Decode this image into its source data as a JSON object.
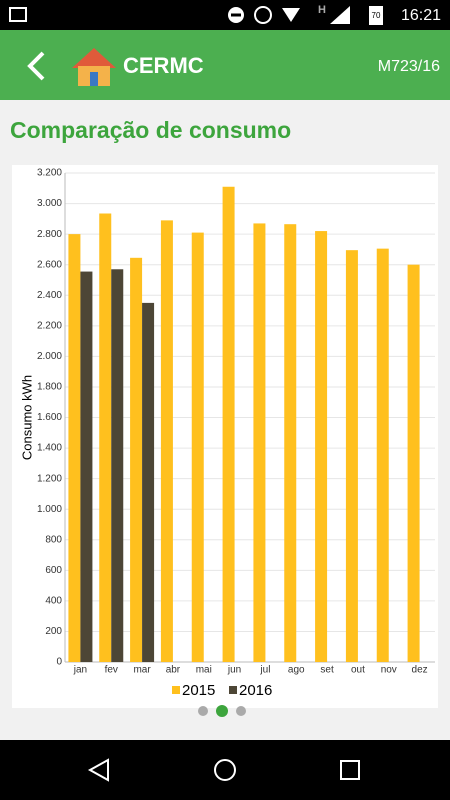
{
  "status_bar": {
    "network": "H",
    "battery": "70",
    "time": "16:21"
  },
  "app_bar": {
    "title": "CERMC",
    "subtitle": "M723/16"
  },
  "page_title": "Comparação de consumo",
  "chart_data": {
    "type": "bar",
    "y_label": "Consumo kWh",
    "categories": [
      "jan",
      "fev",
      "mar",
      "abr",
      "mai",
      "jun",
      "jul",
      "ago",
      "set",
      "out",
      "nov",
      "dez"
    ],
    "series": [
      {
        "name": "2015",
        "color": "#ffc01e",
        "values": [
          2800,
          2935,
          2645,
          2890,
          2810,
          3110,
          2870,
          2865,
          2820,
          2695,
          2705,
          2600
        ]
      },
      {
        "name": "2016",
        "color": "#4d4636",
        "values": [
          2555,
          2570,
          2350,
          null,
          null,
          null,
          null,
          null,
          null,
          null,
          null,
          null
        ]
      }
    ],
    "ylim": [
      0,
      3200
    ],
    "yticks": [
      0,
      200,
      400,
      600,
      800,
      {
        "value": 1000,
        "label": "1.000"
      },
      {
        "value": 1200,
        "label": "1.200"
      },
      {
        "value": 1400,
        "label": "1.400"
      },
      {
        "value": 1600,
        "label": "1.600"
      },
      {
        "value": 1800,
        "label": "1.800"
      },
      {
        "value": 2000,
        "label": "2.000"
      },
      {
        "value": 2200,
        "label": "2.200"
      },
      {
        "value": 2400,
        "label": "2.400"
      },
      {
        "value": 2600,
        "label": "2.600"
      },
      {
        "value": 2800,
        "label": "2.800"
      },
      {
        "value": 3000,
        "label": "3.000"
      },
      {
        "value": 3200,
        "label": "3.200"
      }
    ],
    "grid": true,
    "legend": "bottom"
  }
}
